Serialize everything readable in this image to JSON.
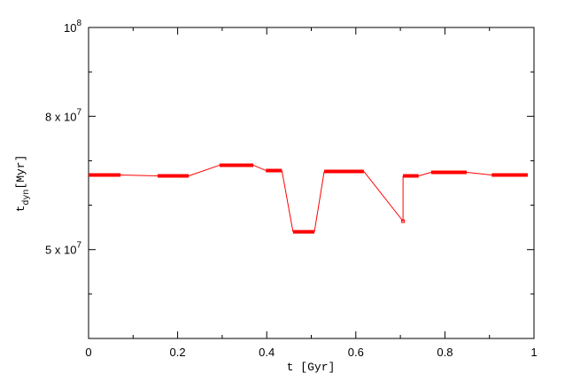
{
  "chart_data": {
    "type": "duration-segments",
    "xlabel": "t",
    "xlabel_unit": "[Gyr]",
    "ylabel": "t",
    "ylabel_sub": "dyn",
    "ylabel_unit": "[Myr]",
    "xlim": [
      0,
      1
    ],
    "xticks": [
      0,
      0.2,
      0.4,
      0.6,
      0.8,
      1
    ],
    "minor_xticks": [
      0.1,
      0.3,
      0.5,
      0.7,
      0.9
    ],
    "ylim": [
      30000000,
      100000000
    ],
    "yticks": [
      {
        "value": 100000000,
        "label": "10",
        "sup": "8"
      },
      {
        "value": 80000000,
        "label": "8 x 10",
        "sup": "7"
      },
      {
        "value": 50000000,
        "label": "5 x 10",
        "sup": "7"
      }
    ],
    "minor_yticks": [
      90000000,
      70000000,
      60000000,
      40000000
    ],
    "color": "#ff0000",
    "x_start": [
      0,
      0.155,
      0.294,
      0.398,
      0.459,
      0.529,
      0.706,
      0.706,
      0.769,
      0.905
    ],
    "x_end": [
      0.072,
      0.225,
      0.37,
      0.434,
      0.507,
      0.618,
      0.706,
      0.741,
      0.849,
      0.986
    ],
    "values": [
      66800000,
      66600000,
      69000000,
      67800000,
      54000000,
      67600000,
      56400000,
      66600000,
      67400000,
      66800000
    ]
  }
}
